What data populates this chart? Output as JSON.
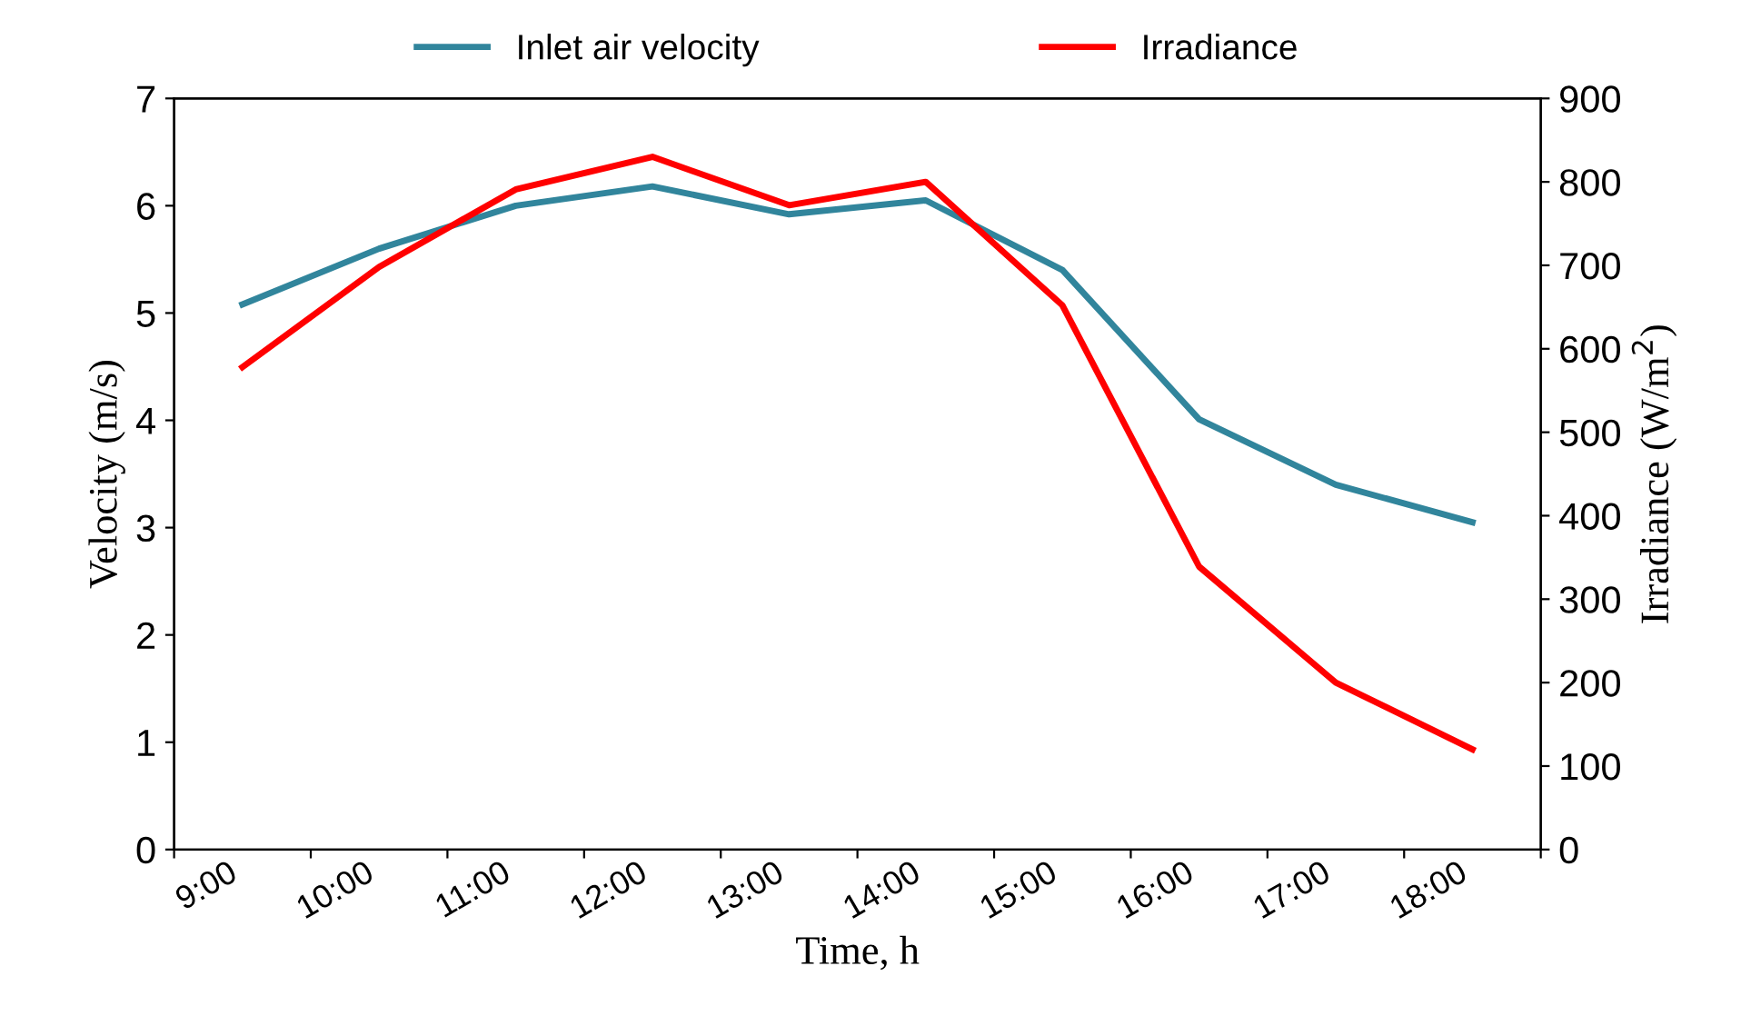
{
  "chart_data": {
    "type": "line",
    "xlabel": "Time, h",
    "ylabel": "Velocity (m/s)",
    "y2label": "Irradiance (W/m$^{2}$)",
    "categories": [
      "9:00",
      "10:00",
      "11:00",
      "12:00",
      "13:00",
      "14:00",
      "15:00",
      "16:00",
      "17:00",
      "18:00"
    ],
    "series": [
      {
        "name": "Inlet air velocity",
        "color": "#31859c",
        "values": [
          5.08,
          5.6,
          6.0,
          6.18,
          5.92,
          6.05,
          5.4,
          4.01,
          3.4,
          3.05
        ]
      },
      {
        "name": "Irradiance",
        "color": "#ff0000",
        "axis": "y2",
        "values": [
          578,
          698,
          791,
          830,
          772,
          800,
          652,
          339,
          200,
          120
        ]
      }
    ],
    "ylim": [
      0,
      7
    ],
    "yticks": [
      0,
      1,
      2,
      3,
      4,
      5,
      6,
      7
    ],
    "y2lim": [
      0,
      900
    ],
    "y2ticks": [
      0,
      100,
      200,
      300,
      400,
      500,
      600,
      700,
      800,
      900
    ],
    "grid": false,
    "legend": "top",
    "line_style": "solid"
  }
}
